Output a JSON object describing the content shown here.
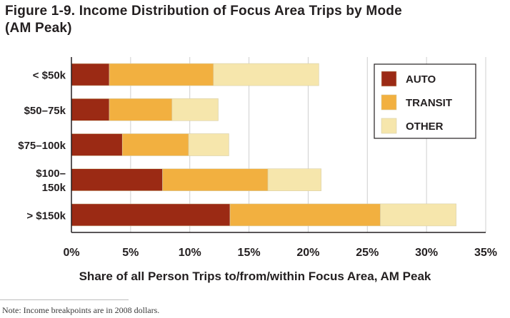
{
  "figure": {
    "title_line1": "Figure 1-9. Income Distribution of Focus Area Trips by Mode",
    "title_line2": "(AM Peak)",
    "note": "Note: Income breakpoints are in 2008 dollars."
  },
  "chart_data": {
    "type": "bar",
    "orientation": "horizontal",
    "stacked": true,
    "xlabel": "Share of all Person Trips to/from/within Focus Area, AM Peak",
    "ylabel": "",
    "xlim": [
      0,
      35
    ],
    "x_ticks": [
      "0%",
      "5%",
      "10%",
      "15%",
      "20%",
      "25%",
      "30%",
      "35%"
    ],
    "grid": true,
    "legend_position": "top-right",
    "categories": [
      [
        "< $50k"
      ],
      [
        "$50–75k"
      ],
      [
        "$75–100k"
      ],
      [
        "$100–",
        "150k"
      ],
      [
        "> $150k"
      ]
    ],
    "series": [
      {
        "name": "AUTO",
        "color": "#9b2a14",
        "values": [
          3.2,
          3.2,
          4.3,
          7.7,
          13.4
        ]
      },
      {
        "name": "TRANSIT",
        "color": "#f2b040",
        "values": [
          8.8,
          5.3,
          5.6,
          8.9,
          12.7
        ]
      },
      {
        "name": "OTHER",
        "color": "#f6e6ac",
        "values": [
          8.9,
          3.9,
          3.4,
          4.5,
          6.4
        ]
      }
    ]
  }
}
